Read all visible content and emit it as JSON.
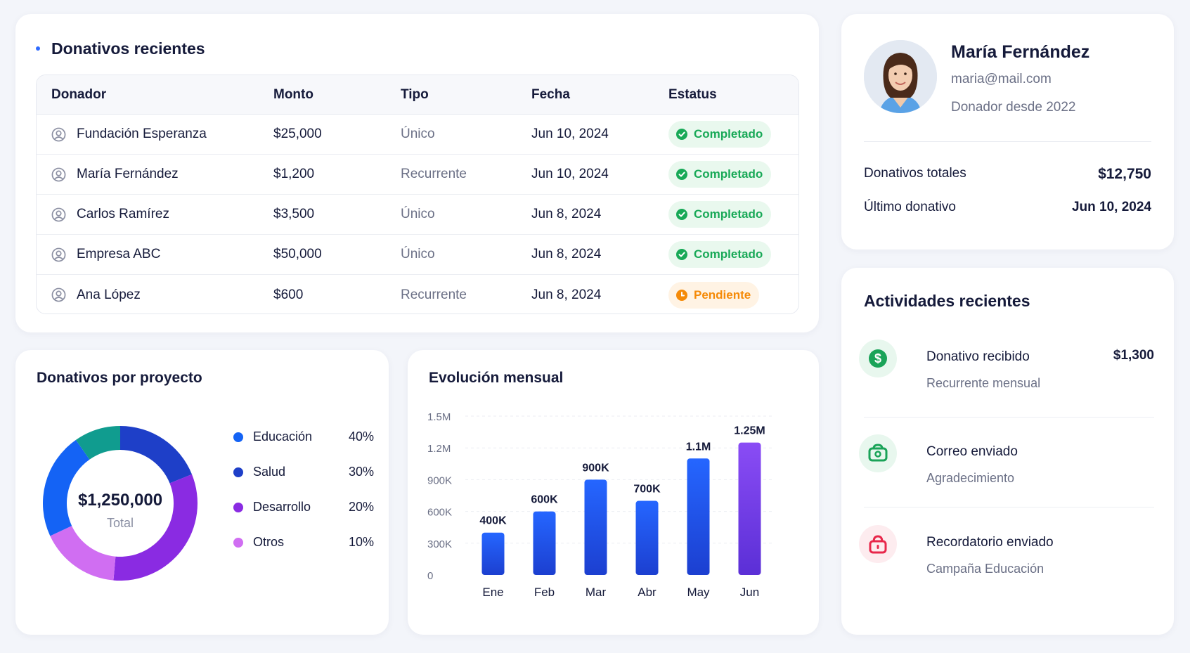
{
  "donations": {
    "title": "Donativos recientes",
    "columns": [
      "Donador",
      "Monto",
      "Tipo",
      "Fecha",
      "Estatus"
    ],
    "rows": [
      {
        "donor": "Fundación Esperanza",
        "amount": "$25,000",
        "type": "Único",
        "date": "Jun 10, 2024",
        "status": "Completado",
        "status_kind": "ok"
      },
      {
        "donor": "María Fernández",
        "amount": "$1,200",
        "type": "Recurrente",
        "date": "Jun 10, 2024",
        "status": "Completado",
        "status_kind": "ok"
      },
      {
        "donor": "Carlos Ramírez",
        "amount": "$3,500",
        "type": "Único",
        "date": "Jun 8, 2024",
        "status": "Completado",
        "status_kind": "ok"
      },
      {
        "donor": "Empresa ABC",
        "amount": "$50,000",
        "type": "Único",
        "date": "Jun 8, 2024",
        "status": "Completado",
        "status_kind": "ok"
      },
      {
        "donor": "Ana López",
        "amount": "$600",
        "type": "Recurrente",
        "date": "Jun 8, 2024",
        "status": "Pendiente",
        "status_kind": "pending"
      }
    ]
  },
  "profile": {
    "name": "María Fernández",
    "email": "maria@mail.com",
    "since": "Donador desde 2022",
    "total_label": "Donativos totales",
    "total_value": "$12,750",
    "last_label": "Último donativo",
    "last_value": "Jun 10, 2024"
  },
  "activities": {
    "title": "Actividades recientes",
    "items": [
      {
        "title": "Donativo recibido",
        "subtitle": "Recurrente mensual",
        "amount": "$1,300",
        "icon": "dollar-icon",
        "color": "#1aa358",
        "bg": "#e8f7ee"
      },
      {
        "title": "Correo enviado",
        "subtitle": "Agradecimiento",
        "amount": "",
        "icon": "mail-icon",
        "color": "#1aa358",
        "bg": "#e8f7ee"
      },
      {
        "title": "Recordatorio enviado",
        "subtitle": "Campaña Educación",
        "amount": "",
        "icon": "bell-lock-icon",
        "color": "#e8274b",
        "bg": "#fdecef"
      }
    ]
  },
  "donut": {
    "title": "Donativos por proyecto",
    "total": "$1,250,000",
    "total_label": "Total"
  },
  "chart_data": [
    {
      "type": "pie",
      "title": "Donativos por proyecto",
      "categories": [
        "Educación",
        "Salud",
        "Desarrollo",
        "Otros"
      ],
      "values": [
        40,
        30,
        20,
        10
      ],
      "value_labels": [
        "40%",
        "30%",
        "20%",
        "10%"
      ],
      "colors": [
        "#1463f5",
        "#1e3fc8",
        "#8a2be2",
        "#d06ef2"
      ],
      "extra_segment_color": "#109c8f",
      "legend": "right"
    },
    {
      "type": "bar",
      "title": "Evolución mensual",
      "categories": [
        "Ene",
        "Feb",
        "Mar",
        "Abr",
        "May",
        "Jun"
      ],
      "values": [
        400000,
        600000,
        900000,
        700000,
        1100000,
        1250000
      ],
      "value_labels": [
        "400K",
        "600K",
        "900K",
        "700K",
        "1.1M",
        "1.25M"
      ],
      "ylim": [
        0,
        1500000
      ],
      "yticks": [
        0,
        300000,
        600000,
        900000,
        1200000,
        1500000
      ],
      "ytick_labels": [
        "0",
        "300K",
        "600K",
        "900K",
        "1.2M",
        "1.5M"
      ],
      "grid": true,
      "colors": [
        "#1463f5",
        "#1463f5",
        "#1f4fe0",
        "#1f4fe0",
        "#1463f5",
        "#7b3cf0"
      ]
    }
  ]
}
